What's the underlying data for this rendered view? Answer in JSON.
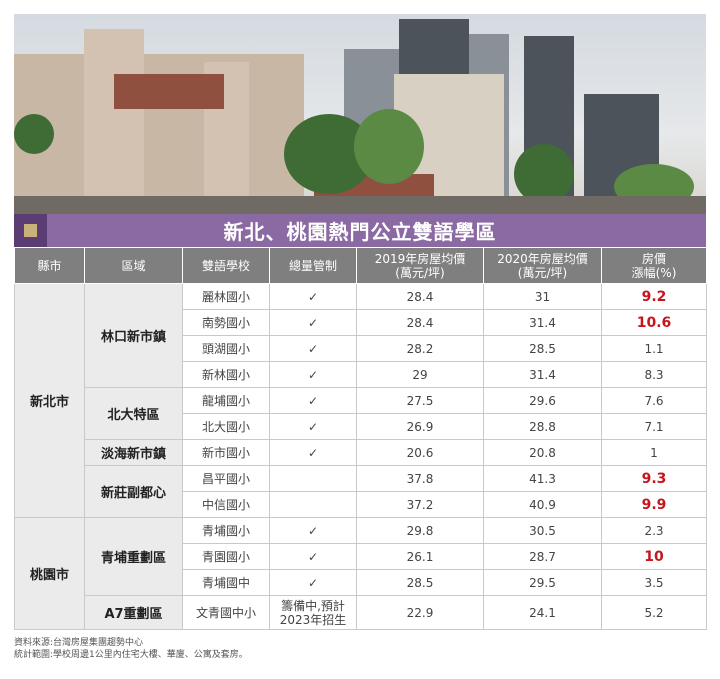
{
  "title": "新北、桃園熱門公立雙語學區",
  "colors": {
    "title_bg": "#8b6aa3",
    "header_bg": "#7f7f7f",
    "highlight": "#c4161c"
  },
  "photo": {
    "description_icon": "photo"
  },
  "table": {
    "headers": [
      "縣市",
      "區域",
      "雙語學校",
      "總量管制",
      "2019年房屋均價\n(萬元/坪)",
      "2020年房屋均價\n(萬元/坪)",
      "房價\n漲幅(%)"
    ],
    "header_lines": {
      "h5a": "2019年房屋均價",
      "h5b": "(萬元/坪)",
      "h6a": "2020年房屋均價",
      "h6b": "(萬元/坪)",
      "h7a": "房價",
      "h7b": "漲幅(%)"
    },
    "cities": {
      "xinbei": "新北市",
      "taoyuan": "桃園市"
    },
    "areas": {
      "linkou": "林口新市鎮",
      "beida": "北大特區",
      "danhai": "淡海新市鎮",
      "xinzhuang": "新莊副都心",
      "qingpu": "青埔重劃區",
      "a7": "A7重劃區"
    },
    "rows": [
      {
        "school": "麗林國小",
        "control": "✓",
        "p2019": "28.4",
        "p2020": "31",
        "rise": "9.2"
      },
      {
        "school": "南勢國小",
        "control": "✓",
        "p2019": "28.4",
        "p2020": "31.4",
        "rise": "10.6"
      },
      {
        "school": "頭湖國小",
        "control": "✓",
        "p2019": "28.2",
        "p2020": "28.5",
        "rise": "1.1"
      },
      {
        "school": "新林國小",
        "control": "✓",
        "p2019": "29",
        "p2020": "31.4",
        "rise": "8.3"
      },
      {
        "school": "龍埔國小",
        "control": "✓",
        "p2019": "27.5",
        "p2020": "29.6",
        "rise": "7.6"
      },
      {
        "school": "北大國小",
        "control": "✓",
        "p2019": "26.9",
        "p2020": "28.8",
        "rise": "7.1"
      },
      {
        "school": "新市國小",
        "control": "✓",
        "p2019": "20.6",
        "p2020": "20.8",
        "rise": "1"
      },
      {
        "school": "昌平國小",
        "control": "",
        "p2019": "37.8",
        "p2020": "41.3",
        "rise": "9.3"
      },
      {
        "school": "中信國小",
        "control": "",
        "p2019": "37.2",
        "p2020": "40.9",
        "rise": "9.9"
      },
      {
        "school": "青埔國小",
        "control": "✓",
        "p2019": "29.8",
        "p2020": "30.5",
        "rise": "2.3"
      },
      {
        "school": "青園國小",
        "control": "✓",
        "p2019": "26.1",
        "p2020": "28.7",
        "rise": "10"
      },
      {
        "school": "青埔國中",
        "control": "✓",
        "p2019": "28.5",
        "p2020": "29.5",
        "rise": "3.5"
      },
      {
        "school": "文青國中小",
        "control_a": "籌備中,預計",
        "control_b": "2023年招生",
        "p2019": "22.9",
        "p2020": "24.1",
        "rise": "5.2"
      }
    ]
  },
  "footer": {
    "source": "資料來源:台灣房屋集團趨勢中心",
    "scope": "統計範圍:學校周邊1公里內住宅大樓、華廈、公寓及套房。"
  }
}
